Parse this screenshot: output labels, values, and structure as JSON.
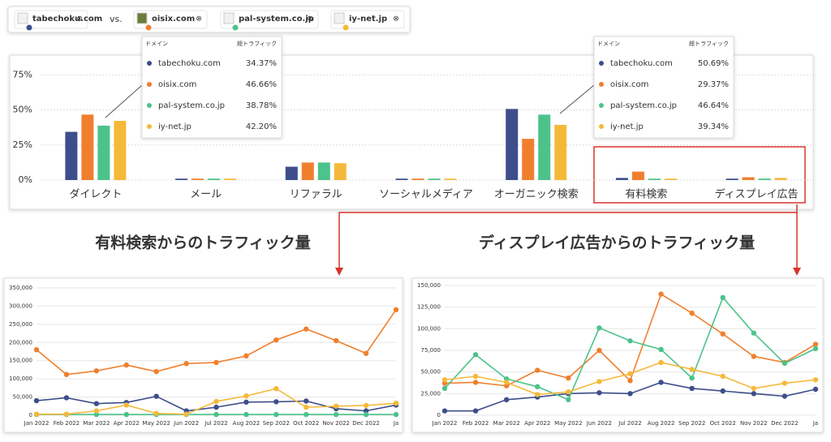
{
  "domains": [
    "tabechoku.com",
    "oisix.com",
    "pal-system.co.jp",
    "iy-net.jp"
  ],
  "vs": "vs.",
  "tooltips": [
    {
      "header": [
        "ドメイン",
        "総トラフィック"
      ],
      "rows": [
        [
          "tabechoku.com",
          "34.37%"
        ],
        [
          "oisix.com",
          "46.66%"
        ],
        [
          "pal-system.co.jp",
          "38.78%"
        ],
        [
          "iy-net.jp",
          "42.20%"
        ]
      ]
    },
    {
      "header": [
        "ドメイン",
        "総トラフィック"
      ],
      "rows": [
        [
          "tabechoku.com",
          "50.69%"
        ],
        [
          "oisix.com",
          "29.37%"
        ],
        [
          "pal-system.co.jp",
          "46.64%"
        ],
        [
          "iy-net.jp",
          "39.34%"
        ]
      ]
    }
  ],
  "headings": [
    "有料検索からのトラフィック量",
    "ディスプレイ広告からのトラフィック量"
  ],
  "chart_data": [
    {
      "type": "bar",
      "categories": [
        "ダイレクト",
        "メール",
        "リファラル",
        "ソーシャルメディア",
        "オーガニック検索",
        "有料検索",
        "ディスプレイ広告"
      ],
      "category_colors": [
        "#555555",
        "#555555",
        "#6b8fd6",
        "#6b8fd6",
        "#6b8fd6",
        "#6b8fd6",
        "#6b8fd6"
      ],
      "ylim": [
        0,
        85
      ],
      "yticks": [
        {
          "value": 0,
          "label": "0%"
        },
        {
          "value": 25,
          "label": "25%"
        },
        {
          "value": 50,
          "label": "50%"
        },
        {
          "value": 75,
          "label": "75%"
        }
      ],
      "grid": true,
      "series": [
        {
          "name": "tabechoku.com",
          "color": "#3d4e8a",
          "values": [
            34.37,
            1,
            9.5,
            1,
            50.69,
            1.5,
            1
          ]
        },
        {
          "name": "oisix.com",
          "color": "#f07f2d",
          "values": [
            46.66,
            1,
            12.5,
            1,
            29.37,
            6,
            2
          ]
        },
        {
          "name": "pal-system.co.jp",
          "color": "#4cc38a",
          "values": [
            38.78,
            1,
            12.5,
            1,
            46.64,
            1,
            1
          ]
        },
        {
          "name": "iy-net.jp",
          "color": "#f5b93a",
          "values": [
            42.2,
            1,
            12,
            1,
            39.34,
            1,
            1.5
          ]
        }
      ]
    },
    {
      "type": "line",
      "categories": [
        "Jan 2022",
        "Feb 2022",
        "Mar 2022",
        "Apr 2022",
        "May 2022",
        "Jun 2022",
        "Jul 2022",
        "Aug 2022",
        "Sep 2022",
        "Oct 2022",
        "Nov 2022",
        "Dec 2022",
        "Ja"
      ],
      "ylim": [
        0,
        350000
      ],
      "yticks": [
        0,
        {
          "value": 50000,
          "label": "50,000"
        },
        {
          "value": 100000,
          "label": "100,000"
        },
        {
          "value": 150000,
          "label": "150,000"
        },
        {
          "value": 200000,
          "label": "200,000"
        },
        {
          "value": 250000,
          "label": "250,000"
        },
        {
          "value": 300000,
          "label": "300,000"
        },
        {
          "value": 350000,
          "label": "350,000"
        }
      ],
      "grid": true,
      "series": [
        {
          "color": "#3d4e8a",
          "values": [
            40000,
            48000,
            32000,
            35000,
            52000,
            12000,
            22000,
            36000,
            37000,
            39000,
            18000,
            12000,
            28000
          ]
        },
        {
          "color": "#f07f2d",
          "values": [
            180000,
            112000,
            122000,
            138000,
            120000,
            142000,
            145000,
            163000,
            207000,
            237000,
            205000,
            170000,
            290000
          ]
        },
        {
          "color": "#4cc38a",
          "values": [
            2000,
            2000,
            2000,
            2000,
            2000,
            2000,
            2000,
            2000,
            2000,
            2000,
            2000,
            2000,
            2000
          ]
        },
        {
          "color": "#f5b93a",
          "values": [
            3000,
            3000,
            12000,
            28000,
            5000,
            3000,
            38000,
            53000,
            73000,
            22000,
            25000,
            27000,
            33000
          ]
        }
      ]
    },
    {
      "type": "line",
      "categories": [
        "Jan 2022",
        "Feb 2022",
        "Mar 2022",
        "Apr 2022",
        "May 2022",
        "Jun 2022",
        "Jul 2022",
        "Aug 2022",
        "Sep 2022",
        "Oct 2022",
        "Nov 2022",
        "Dec 2022",
        "Ja"
      ],
      "ylim": [
        0,
        150000
      ],
      "yticks": [
        0,
        {
          "value": 25000,
          "label": "25,000"
        },
        {
          "value": 50000,
          "label": "50,000"
        },
        {
          "value": 75000,
          "label": "75,000"
        },
        {
          "value": 100000,
          "label": "100,000"
        },
        {
          "value": 125000,
          "label": "125,000"
        },
        {
          "value": 150000,
          "label": "150,000"
        }
      ],
      "grid": true,
      "series": [
        {
          "color": "#3d4e8a",
          "values": [
            5000,
            5000,
            18000,
            21000,
            25000,
            26000,
            25000,
            38000,
            31000,
            28000,
            25000,
            22000,
            30000
          ]
        },
        {
          "color": "#f07f2d",
          "values": [
            37000,
            38000,
            34000,
            52000,
            43000,
            75000,
            40000,
            140000,
            118000,
            94000,
            68000,
            61000,
            82000
          ]
        },
        {
          "color": "#4cc38a",
          "values": [
            31000,
            70000,
            42000,
            33000,
            18000,
            101000,
            86000,
            76000,
            43000,
            136000,
            95000,
            60000,
            77000
          ]
        },
        {
          "color": "#f5b93a",
          "values": [
            41000,
            45000,
            38000,
            24000,
            27000,
            39000,
            48000,
            61000,
            53000,
            45000,
            31000,
            37000,
            41000
          ]
        }
      ]
    }
  ]
}
